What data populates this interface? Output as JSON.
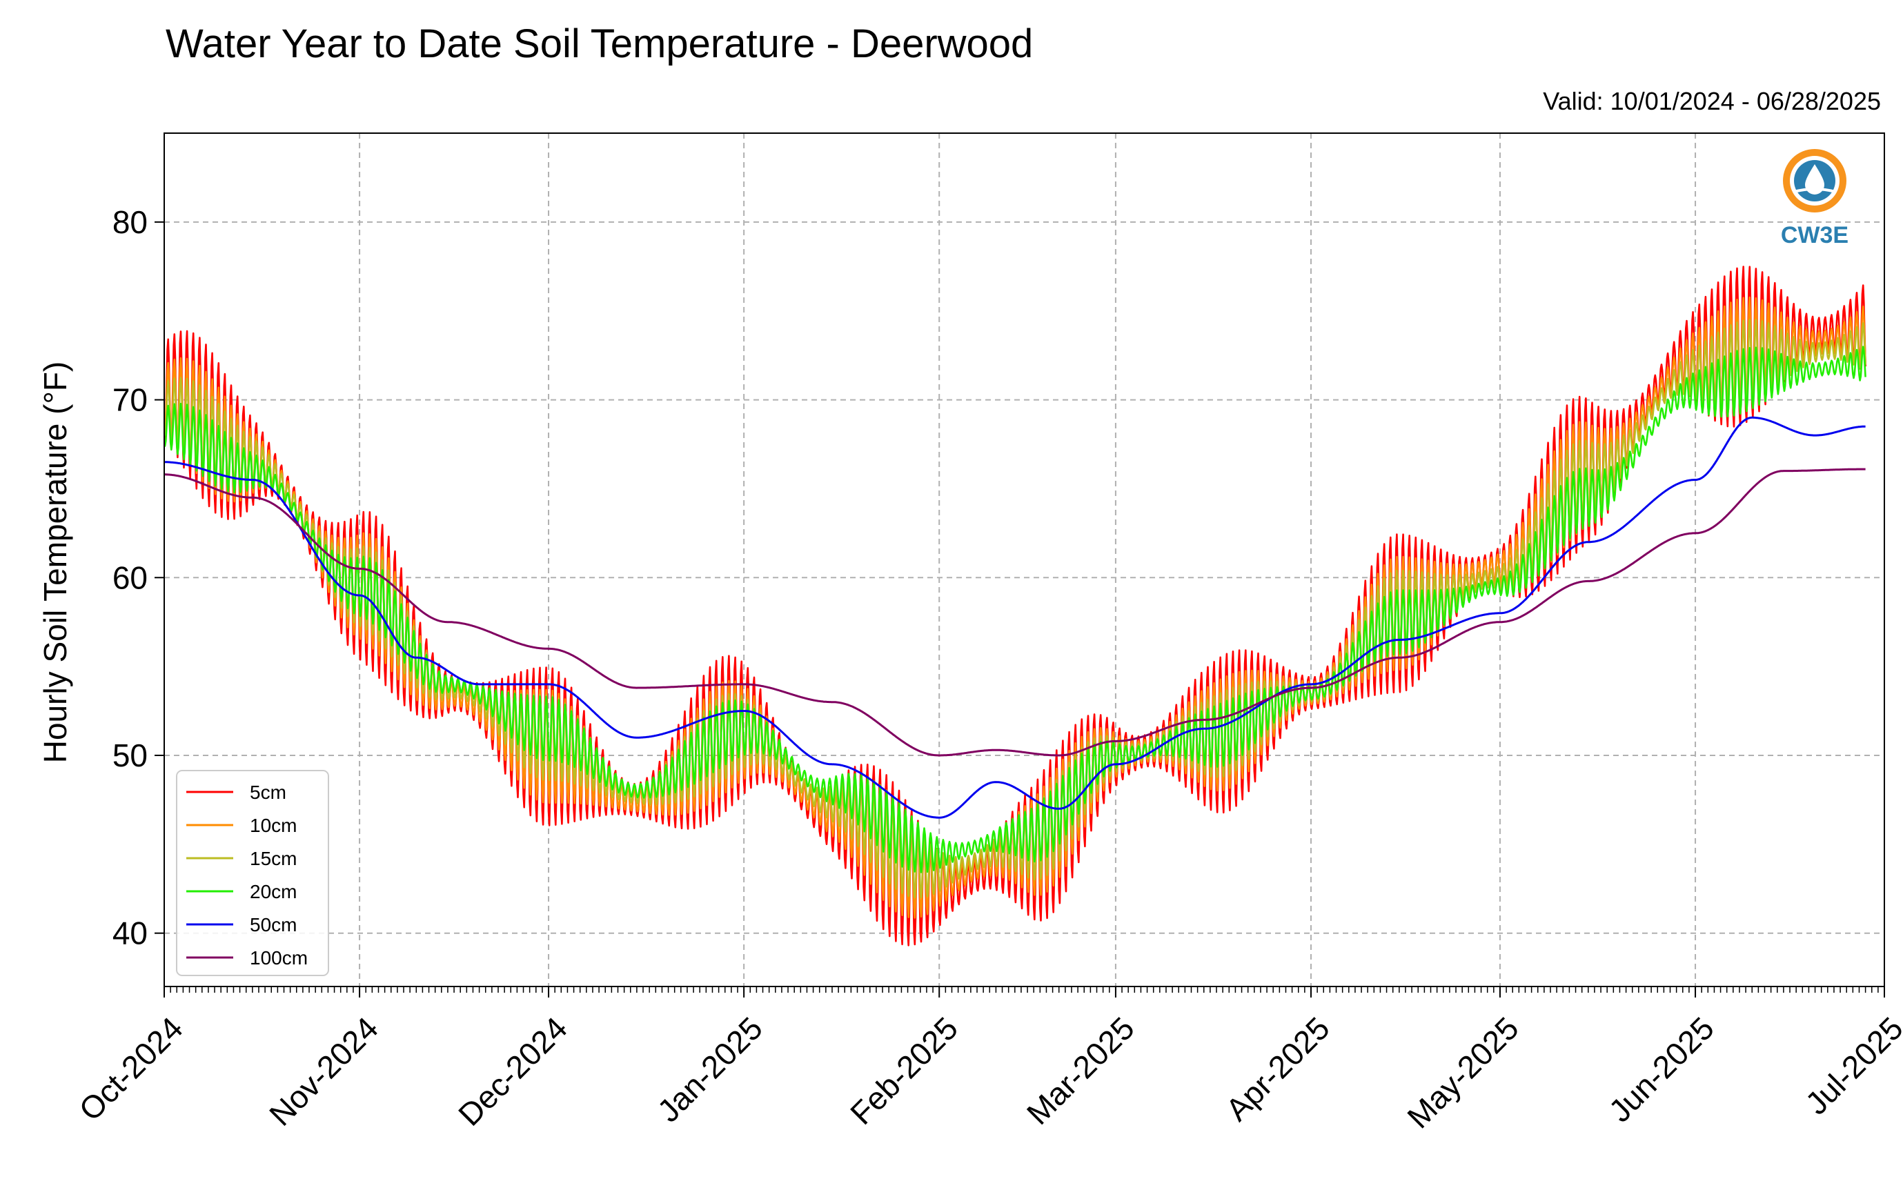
{
  "header": {
    "title": "Water Year to Date Soil Temperature - Deerwood",
    "valid": "Valid: 10/01/2024 - 06/28/2025"
  },
  "logo": {
    "text": "CW3E",
    "icon": "water-drop-logo-icon",
    "colors": {
      "ring": "#f7941d",
      "blue": "#2a7fb0"
    }
  },
  "chart_data": {
    "type": "line",
    "title": "Water Year to Date Soil Temperature - Deerwood",
    "xlabel": "",
    "ylabel": "Hourly Soil Temperature (°F)",
    "ylim": [
      37,
      85
    ],
    "xlim": [
      "2024-10-01",
      "2025-07-01"
    ],
    "yticks": [
      40,
      50,
      60,
      70,
      80
    ],
    "xticks": [
      "Oct-2024",
      "Nov-2024",
      "Dec-2024",
      "Jan-2025",
      "Feb-2025",
      "Mar-2025",
      "Apr-2025",
      "May-2025",
      "Jun-2025",
      "Jul-2025"
    ],
    "grid": true,
    "legend_position": "lower-left",
    "series": [
      {
        "name": "5cm",
        "color": "#ff0000",
        "amplitude": 4.5,
        "shift": 0.0,
        "x": [
          "2024-10-01",
          "2024-10-15",
          "2024-11-01",
          "2024-11-15",
          "2024-12-01",
          "2024-12-15",
          "2025-01-01",
          "2025-01-15",
          "2025-02-01",
          "2025-02-15",
          "2025-03-01",
          "2025-03-15",
          "2025-04-01",
          "2025-04-15",
          "2025-05-01",
          "2025-05-15",
          "2025-06-01",
          "2025-06-15",
          "2025-06-28"
        ],
        "y": [
          70.5,
          66.5,
          59.5,
          53.5,
          50.5,
          47.5,
          51.5,
          46.5,
          42.5,
          44.5,
          50.0,
          51.0,
          53.5,
          58.0,
          60.5,
          66.0,
          72.5,
          73.5,
          74.0
        ]
      },
      {
        "name": "10cm",
        "color": "#ff8c00",
        "amplitude": 3.2,
        "shift": 0.2,
        "x": [
          "2024-10-01",
          "2024-10-15",
          "2024-11-01",
          "2024-11-15",
          "2024-12-01",
          "2024-12-15",
          "2025-01-01",
          "2025-01-15",
          "2025-02-01",
          "2025-02-15",
          "2025-03-01",
          "2025-03-15",
          "2025-04-01",
          "2025-04-15",
          "2025-05-01",
          "2025-05-15",
          "2025-06-01",
          "2025-06-15",
          "2025-06-28"
        ],
        "y": [
          70.0,
          66.5,
          59.5,
          53.5,
          50.5,
          47.5,
          51.3,
          46.8,
          43.0,
          44.8,
          50.0,
          51.0,
          53.5,
          58.0,
          60.5,
          65.8,
          72.0,
          73.0,
          73.5
        ]
      },
      {
        "name": "15cm",
        "color": "#bcbd22",
        "amplitude": 2.4,
        "shift": 0.4,
        "x": [
          "2024-10-01",
          "2024-10-15",
          "2024-11-01",
          "2024-11-15",
          "2024-12-01",
          "2024-12-15",
          "2025-01-01",
          "2025-01-15",
          "2025-02-01",
          "2025-02-15",
          "2025-03-01",
          "2025-03-15",
          "2025-04-01",
          "2025-04-15",
          "2025-05-01",
          "2025-05-15",
          "2025-06-01",
          "2025-06-15",
          "2025-06-28"
        ],
        "y": [
          69.5,
          66.5,
          59.5,
          53.8,
          51.0,
          47.8,
          51.3,
          47.3,
          43.5,
          45.0,
          50.0,
          51.0,
          53.5,
          58.0,
          60.0,
          65.5,
          71.5,
          72.5,
          73.0
        ]
      },
      {
        "name": "20cm",
        "color": "#22ee00",
        "amplitude": 1.8,
        "shift": 0.6,
        "x": [
          "2024-10-01",
          "2024-10-15",
          "2024-11-01",
          "2024-11-15",
          "2024-12-01",
          "2024-12-15",
          "2025-01-01",
          "2025-01-15",
          "2025-02-01",
          "2025-02-15",
          "2025-03-01",
          "2025-03-15",
          "2025-04-01",
          "2025-04-15",
          "2025-05-01",
          "2025-05-15",
          "2025-06-01",
          "2025-06-15",
          "2025-06-28"
        ],
        "y": [
          68.5,
          66.0,
          59.5,
          54.0,
          51.5,
          48.0,
          51.5,
          48.0,
          44.5,
          45.5,
          50.0,
          51.0,
          53.5,
          57.5,
          59.5,
          64.5,
          70.5,
          71.5,
          72.0
        ]
      },
      {
        "name": "50cm",
        "color": "#0000ee",
        "amplitude": 0,
        "shift": 0,
        "x": [
          "2024-10-01",
          "2024-10-15",
          "2024-11-01",
          "2024-11-10",
          "2024-11-20",
          "2024-12-01",
          "2024-12-15",
          "2025-01-01",
          "2025-01-15",
          "2025-02-01",
          "2025-02-10",
          "2025-02-20",
          "2025-03-01",
          "2025-03-15",
          "2025-04-01",
          "2025-04-15",
          "2025-05-01",
          "2025-05-15",
          "2025-06-01",
          "2025-06-10",
          "2025-06-20",
          "2025-06-28"
        ],
        "y": [
          66.5,
          65.5,
          59.0,
          55.5,
          54.0,
          54.0,
          51.0,
          52.5,
          49.5,
          46.5,
          48.5,
          47.0,
          49.5,
          51.5,
          54.0,
          56.5,
          58.0,
          62.0,
          65.5,
          69.0,
          68.0,
          68.5
        ]
      },
      {
        "name": "100cm",
        "color": "#800060",
        "amplitude": 0,
        "shift": 0,
        "x": [
          "2024-10-01",
          "2024-10-15",
          "2024-11-01",
          "2024-11-15",
          "2024-12-01",
          "2024-12-15",
          "2025-01-01",
          "2025-01-15",
          "2025-02-01",
          "2025-02-10",
          "2025-02-20",
          "2025-03-01",
          "2025-03-15",
          "2025-04-01",
          "2025-04-15",
          "2025-05-01",
          "2025-05-15",
          "2025-06-01",
          "2025-06-15",
          "2025-06-28"
        ],
        "y": [
          65.8,
          64.5,
          60.5,
          57.5,
          56.0,
          53.8,
          54.0,
          53.0,
          50.0,
          50.3,
          50.0,
          50.8,
          52.0,
          53.8,
          55.5,
          57.5,
          59.8,
          62.5,
          66.0,
          66.1
        ]
      }
    ]
  }
}
